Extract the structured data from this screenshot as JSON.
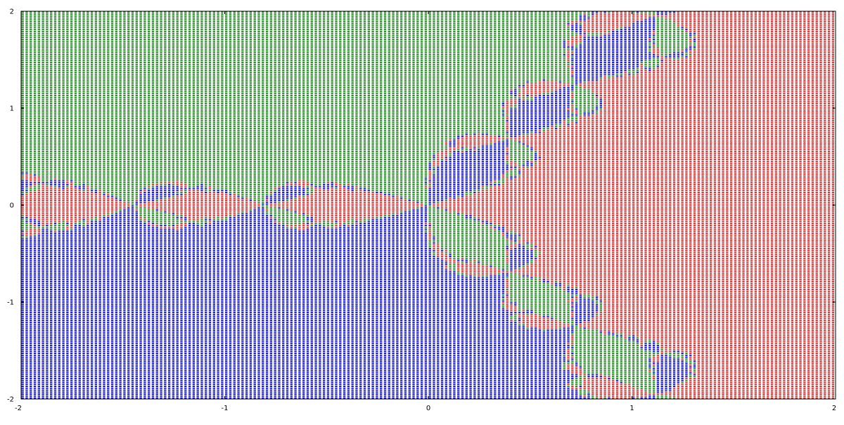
{
  "chart_data": {
    "type": "heatmap",
    "title": "",
    "xlabel": "",
    "ylabel": "",
    "xlim": [
      -2,
      2
    ],
    "ylim": [
      -2,
      2
    ],
    "grid": false,
    "x_ticks": [
      "-2",
      "-1",
      "0",
      "1",
      "2"
    ],
    "y_ticks": [
      "2",
      "1",
      "0",
      "-1",
      "-2"
    ],
    "x_tick_values": [
      -2,
      -1,
      0,
      1,
      2
    ],
    "y_tick_values": [
      2,
      1,
      0,
      -1,
      -2
    ],
    "grid_resolution": [
      200,
      200
    ],
    "iteration": "newton z^3 - 1",
    "roots": [
      {
        "re": 1.0,
        "im": 0.0,
        "color": "#d03a3a"
      },
      {
        "re": -0.5,
        "im": 0.866,
        "color": "#2d8a2d"
      },
      {
        "re": -0.5,
        "im": -0.866,
        "color": "#1c1ccc"
      }
    ]
  }
}
